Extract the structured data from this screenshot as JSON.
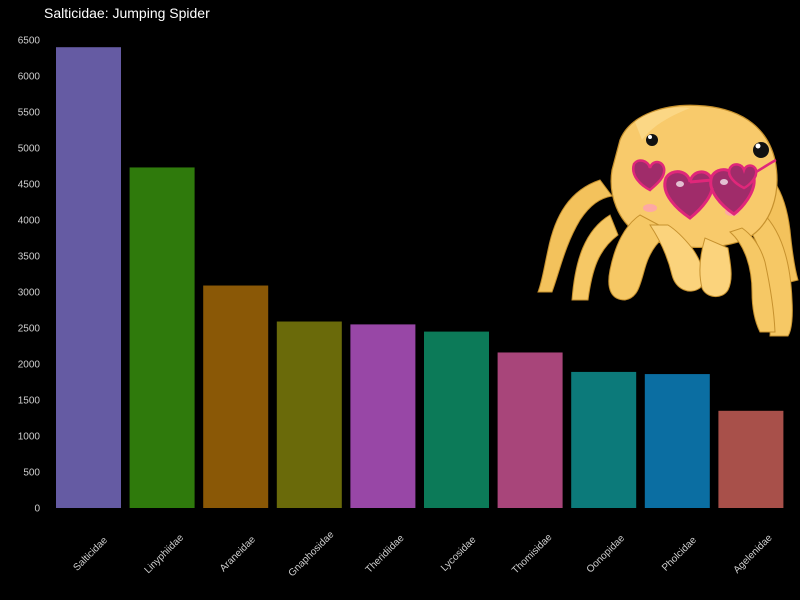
{
  "chart_data": {
    "type": "bar",
    "title": "Salticidae: Jumping Spider",
    "xlabel": "",
    "ylabel": "",
    "ylim": [
      0,
      6500
    ],
    "y_ticks": [
      0,
      500,
      1000,
      1500,
      2000,
      2500,
      3000,
      3500,
      4000,
      4500,
      5000,
      5500,
      6000,
      6500
    ],
    "grid": false,
    "legend": "none",
    "background": "#000000",
    "categories": [
      "Salticidae",
      "Linyphiidae",
      "Araneidae",
      "Gnaphosidae",
      "Theridiidae",
      "Lycosidae",
      "Thomisidae",
      "Oonopidae",
      "Pholcidae",
      "Agelenidae"
    ],
    "values": [
      6400,
      4730,
      3090,
      2590,
      2550,
      2450,
      2160,
      1890,
      1860,
      1350
    ],
    "colors": [
      "#655ba3",
      "#2f7a0c",
      "#8a5806",
      "#6a6a0a",
      "#9847a6",
      "#0c7a58",
      "#a8457a",
      "#0c7a7a",
      "#0b6ea2",
      "#a8504a"
    ]
  },
  "illustration": {
    "icon": "jumping-spider-with-heart-sunglasses-icon"
  }
}
